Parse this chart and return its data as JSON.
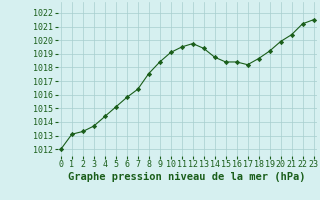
{
  "x": [
    0,
    1,
    2,
    3,
    4,
    5,
    6,
    7,
    8,
    9,
    10,
    11,
    12,
    13,
    14,
    15,
    16,
    17,
    18,
    19,
    20,
    21,
    22,
    23
  ],
  "y": [
    1012.0,
    1013.1,
    1013.3,
    1013.7,
    1014.4,
    1015.1,
    1015.8,
    1016.4,
    1017.55,
    1018.4,
    1019.1,
    1019.5,
    1019.75,
    1019.4,
    1018.75,
    1018.4,
    1018.4,
    1018.2,
    1018.65,
    1019.2,
    1019.9,
    1020.4,
    1021.2,
    1021.5
  ],
  "line_color": "#1a5e1a",
  "marker": "D",
  "marker_size": 2.2,
  "line_width": 0.8,
  "bg_color": "#d6f0f0",
  "grid_color": "#a8cece",
  "xlabel": "Graphe pression niveau de la mer (hPa)",
  "xlabel_color": "#1a5e1a",
  "xlabel_fontsize": 7.5,
  "tick_color": "#1a5e1a",
  "tick_fontsize": 6.0,
  "ylim": [
    1011.5,
    1022.8
  ],
  "yticks": [
    1012,
    1013,
    1014,
    1015,
    1016,
    1017,
    1018,
    1019,
    1020,
    1021,
    1022
  ],
  "xticks": [
    0,
    1,
    2,
    3,
    4,
    5,
    6,
    7,
    8,
    9,
    10,
    11,
    12,
    13,
    14,
    15,
    16,
    17,
    18,
    19,
    20,
    21,
    22,
    23
  ],
  "xlim": [
    -0.3,
    23.3
  ]
}
